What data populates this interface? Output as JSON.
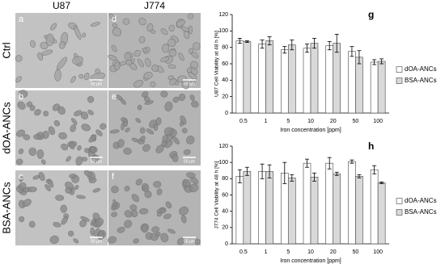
{
  "micrographs": {
    "columns": [
      "U87",
      "J774"
    ],
    "rows": [
      "Ctrl",
      "dOA-ANCs",
      "BSA-ANCs"
    ],
    "panels": [
      [
        "a",
        "d"
      ],
      [
        "b",
        "e"
      ],
      [
        "c",
        "f"
      ]
    ],
    "scale_bar": "50 µm"
  },
  "chart_data": [
    {
      "type": "bar",
      "panel": "g",
      "y_label": "U87 Cell Viability at 48 h [%]",
      "x_label": "Iron concentration [ppm]",
      "categories": [
        "0.5",
        "1",
        "5",
        "10",
        "20",
        "50",
        "100"
      ],
      "series": [
        {
          "name": "dOA-ANCs",
          "color": "#ffffff",
          "values": [
            88,
            84,
            77,
            79,
            82,
            75,
            62
          ],
          "errors": [
            3,
            5,
            4,
            5,
            5,
            6,
            3
          ]
        },
        {
          "name": "BSA-ANCs",
          "color": "#d9d9d9",
          "values": [
            87,
            88,
            83,
            85,
            85,
            68,
            63
          ],
          "errors": [
            1,
            5,
            6,
            6,
            11,
            8,
            3
          ]
        }
      ],
      "ylim": [
        0,
        120
      ],
      "yticks": [
        0,
        20,
        40,
        60,
        80,
        100,
        120
      ],
      "grid": false,
      "legend": "right"
    },
    {
      "type": "bar",
      "panel": "h",
      "y_label": "J774 Cell Viability at 48 h [%]",
      "x_label": "Iron concentration [ppm]",
      "categories": [
        "0.5",
        "1",
        "5",
        "10",
        "20",
        "50",
        "100"
      ],
      "series": [
        {
          "name": "dOA-ANCs",
          "color": "#ffffff",
          "values": [
            83,
            89,
            87,
            99,
            99,
            101,
            91
          ],
          "errors": [
            8,
            9,
            13,
            5,
            7,
            2,
            5
          ]
        },
        {
          "name": "BSA-ANCs",
          "color": "#d9d9d9",
          "values": [
            89,
            89,
            81,
            82,
            86,
            83,
            75
          ],
          "errors": [
            5,
            8,
            4,
            5,
            2,
            2,
            1
          ]
        }
      ],
      "ylim": [
        0,
        120
      ],
      "yticks": [
        0,
        20,
        40,
        60,
        80,
        100,
        120
      ],
      "grid": false,
      "legend": "right"
    }
  ]
}
